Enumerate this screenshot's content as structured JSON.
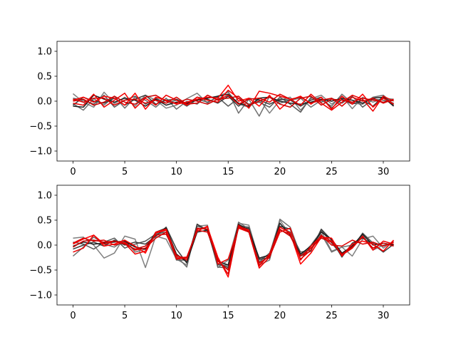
{
  "chart_data": [
    {
      "type": "line",
      "xlim": [
        -1.55,
        32.55
      ],
      "ylim": [
        -1.2,
        1.2
      ],
      "xticks": [
        0,
        5,
        10,
        15,
        20,
        25,
        30
      ],
      "xtick_labels": [
        "0",
        "5",
        "10",
        "15",
        "20",
        "25",
        "30"
      ],
      "yticks": [
        -1.0,
        -0.5,
        0.0,
        0.5,
        1.0
      ],
      "ytick_labels": [
        "−1.0",
        "−0.5",
        "0.0",
        "0.5",
        "1.0"
      ],
      "grid": false,
      "x": [
        0,
        1,
        2,
        3,
        4,
        5,
        6,
        7,
        8,
        9,
        10,
        11,
        12,
        13,
        14,
        15,
        16,
        17,
        18,
        19,
        20,
        21,
        22,
        23,
        24,
        25,
        26,
        27,
        28,
        29,
        30,
        31
      ],
      "series": [
        {
          "color": "#808080",
          "values": [
            0.15,
            -0.02,
            -0.12,
            0.18,
            -0.05,
            0.08,
            -0.1,
            0.12,
            0.02,
            -0.14,
            -0.08,
            0.05,
            0.16,
            -0.04,
            0.1,
            0.18,
            -0.06,
            -0.12,
            0.04,
            -0.24,
            0.02,
            0.08,
            -0.18,
            0.05,
            0.12,
            -0.06,
            0.1,
            -0.15,
            0.08,
            -0.02,
            0.06,
            0.04
          ]
        },
        {
          "color": "#707070",
          "values": [
            -0.05,
            -0.18,
            0.05,
            -0.08,
            0.1,
            -0.14,
            0.08,
            0.02,
            -0.12,
            0.06,
            -0.16,
            0.0,
            -0.06,
            0.12,
            0.02,
            0.2,
            -0.24,
            0.04,
            -0.3,
            0.1,
            -0.04,
            0.02,
            0.06,
            -0.12,
            0.02,
            -0.1,
            0.14,
            -0.04,
            -0.06,
            0.08,
            0.12,
            -0.06
          ]
        },
        {
          "color": "#5a5a5a",
          "values": [
            0.06,
            0.02,
            -0.06,
            0.12,
            -0.12,
            0.02,
            0.1,
            -0.06,
            0.06,
            -0.04,
            0.02,
            -0.1,
            0.04,
            -0.02,
            0.08,
            -0.1,
            0.06,
            -0.06,
            -0.02,
            -0.12,
            0.08,
            -0.06,
            -0.22,
            0.08,
            -0.02,
            0.06,
            -0.04,
            0.1,
            -0.12,
            0.04,
            0.02,
            -0.04
          ]
        },
        {
          "color": "#3c3c3c",
          "values": [
            -0.08,
            0.08,
            0.0,
            -0.04,
            0.06,
            -0.08,
            0.04,
            0.12,
            -0.06,
            0.02,
            0.04,
            -0.06,
            0.08,
            0.04,
            -0.04,
            0.1,
            -0.1,
            0.06,
            0.02,
            -0.06,
            0.04,
            0.02,
            -0.1,
            0.02,
            0.08,
            -0.14,
            0.04,
            -0.06,
            0.02,
            -0.1,
            0.1,
            -0.08
          ]
        },
        {
          "color": "#1e1e1e",
          "values": [
            -0.1,
            -0.12,
            0.12,
            0.04,
            -0.02,
            0.06,
            0.02,
            -0.1,
            0.04,
            -0.08,
            -0.02,
            -0.04,
            0.02,
            0.06,
            0.1,
            0.14,
            -0.04,
            -0.1,
            0.06,
            0.08,
            0.0,
            -0.04,
            -0.06,
            -0.02,
            0.04,
            0.0,
            0.06,
            0.02,
            -0.04,
            0.06,
            0.08,
            -0.1
          ]
        },
        {
          "color": "#ff0000",
          "values": [
            0.02,
            0.08,
            -0.02,
            0.1,
            0.06,
            -0.08,
            0.16,
            -0.16,
            0.08,
            0.02,
            -0.06,
            -0.02,
            0.04,
            0.08,
            0.06,
            0.32,
            0.0,
            0.06,
            -0.1,
            0.12,
            -0.16,
            0.02,
            0.1,
            -0.06,
            0.08,
            -0.16,
            0.1,
            -0.06,
            0.14,
            -0.12,
            0.06,
            -0.06
          ]
        },
        {
          "color": "#ee0000",
          "values": [
            -0.04,
            -0.08,
            0.14,
            -0.12,
            0.02,
            0.16,
            -0.14,
            0.06,
            -0.08,
            0.12,
            0.02,
            -0.08,
            0.08,
            0.02,
            -0.02,
            0.22,
            0.06,
            -0.14,
            0.2,
            0.16,
            0.1,
            0.04,
            -0.08,
            0.14,
            -0.04,
            -0.18,
            -0.02,
            0.12,
            0.04,
            -0.2,
            0.1,
            0.0
          ]
        },
        {
          "color": "#dd0000",
          "values": [
            0.04,
            -0.02,
            0.06,
            0.06,
            -0.08,
            0.02,
            0.04,
            -0.04,
            0.02,
            -0.04,
            0.08,
            -0.06,
            -0.04,
            0.12,
            0.02,
            0.12,
            -0.06,
            0.04,
            0.06,
            -0.02,
            0.14,
            0.04,
            0.08,
            -0.04,
            0.02,
            0.06,
            -0.1,
            0.08,
            0.0,
            0.06,
            -0.04,
            0.04
          ]
        },
        {
          "color": "#cc0000",
          "values": [
            0.0,
            0.04,
            -0.08,
            -0.02,
            0.1,
            -0.02,
            -0.06,
            0.08,
            0.12,
            0.0,
            -0.04,
            0.04,
            0.0,
            -0.06,
            0.04,
            0.06,
            0.1,
            -0.08,
            0.0,
            0.08,
            -0.06,
            -0.12,
            0.06,
            0.1,
            -0.08,
            0.04,
            0.02,
            -0.02,
            0.06,
            0.02,
            -0.02,
            0.02
          ]
        }
      ]
    },
    {
      "type": "line",
      "xlim": [
        -1.55,
        32.55
      ],
      "ylim": [
        -1.2,
        1.2
      ],
      "xticks": [
        0,
        5,
        10,
        15,
        20,
        25,
        30
      ],
      "xtick_labels": [
        "0",
        "5",
        "10",
        "15",
        "20",
        "25",
        "30"
      ],
      "yticks": [
        -1.0,
        -0.5,
        0.0,
        0.5,
        1.0
      ],
      "ytick_labels": [
        "−1.0",
        "−0.5",
        "0.0",
        "0.5",
        "1.0"
      ],
      "grid": false,
      "x": [
        0,
        1,
        2,
        3,
        4,
        5,
        6,
        7,
        8,
        9,
        10,
        11,
        12,
        13,
        14,
        15,
        16,
        17,
        18,
        19,
        20,
        21,
        22,
        23,
        24,
        25,
        26,
        27,
        28,
        29,
        30,
        31
      ],
      "series": [
        {
          "color": "#808080",
          "values": [
            0.14,
            0.16,
            0.0,
            -0.26,
            -0.16,
            0.18,
            0.12,
            -0.45,
            0.18,
            0.12,
            -0.28,
            -0.4,
            0.38,
            0.4,
            -0.45,
            -0.3,
            0.44,
            0.4,
            -0.3,
            -0.18,
            0.5,
            0.2,
            -0.22,
            0.0,
            0.28,
            -0.12,
            -0.04,
            -0.22,
            0.12,
            0.18,
            -0.06,
            0.08
          ]
        },
        {
          "color": "#707070",
          "values": [
            -0.22,
            -0.04,
            0.16,
            0.02,
            -0.04,
            0.1,
            -0.14,
            -0.08,
            0.2,
            0.3,
            -0.22,
            -0.44,
            0.42,
            0.3,
            -0.4,
            -0.4,
            0.46,
            0.32,
            -0.4,
            -0.3,
            0.52,
            0.36,
            -0.2,
            -0.02,
            0.22,
            -0.14,
            -0.04,
            0.0,
            0.2,
            -0.1,
            0.0,
            0.02
          ]
        },
        {
          "color": "#5a5a5a",
          "values": [
            0.06,
            0.02,
            -0.08,
            0.06,
            0.14,
            -0.06,
            0.02,
            0.08,
            0.22,
            0.26,
            -0.3,
            -0.3,
            0.38,
            0.32,
            -0.44,
            -0.46,
            0.38,
            0.36,
            -0.34,
            -0.16,
            0.36,
            0.26,
            -0.14,
            -0.1,
            0.3,
            0.04,
            -0.2,
            -0.06,
            0.24,
            0.04,
            -0.02,
            0.06
          ]
        },
        {
          "color": "#3c3c3c",
          "values": [
            -0.08,
            0.0,
            0.06,
            -0.02,
            0.1,
            0.0,
            0.06,
            0.02,
            0.18,
            0.36,
            -0.08,
            -0.36,
            0.42,
            0.28,
            -0.38,
            -0.44,
            0.34,
            0.34,
            -0.28,
            -0.26,
            0.38,
            0.32,
            -0.22,
            -0.12,
            0.32,
            0.1,
            -0.24,
            0.04,
            0.14,
            0.02,
            -0.14,
            0.02
          ]
        },
        {
          "color": "#1e1e1e",
          "values": [
            -0.02,
            0.06,
            0.02,
            0.04,
            0.06,
            0.08,
            -0.04,
            -0.08,
            0.26,
            0.34,
            -0.18,
            -0.34,
            0.26,
            0.3,
            -0.32,
            -0.4,
            0.42,
            0.3,
            -0.26,
            -0.2,
            0.44,
            0.2,
            -0.18,
            -0.02,
            0.26,
            0.12,
            -0.16,
            -0.02,
            0.22,
            0.0,
            0.04,
            0.0
          ]
        },
        {
          "color": "#ff0000",
          "values": [
            0.02,
            0.12,
            0.2,
            -0.02,
            0.02,
            0.1,
            -0.02,
            -0.16,
            0.26,
            0.32,
            -0.22,
            -0.26,
            0.32,
            0.36,
            -0.24,
            -0.64,
            0.38,
            0.3,
            -0.42,
            -0.18,
            0.36,
            0.24,
            -0.38,
            -0.16,
            0.16,
            0.14,
            -0.22,
            0.02,
            0.08,
            0.02,
            -0.12,
            0.1
          ]
        },
        {
          "color": "#ee0000",
          "values": [
            -0.14,
            -0.06,
            0.2,
            0.02,
            0.08,
            0.04,
            -0.18,
            -0.12,
            0.24,
            0.3,
            -0.28,
            -0.26,
            0.28,
            0.38,
            -0.38,
            -0.28,
            0.34,
            0.26,
            -0.46,
            -0.24,
            0.26,
            0.34,
            -0.3,
            -0.02,
            0.18,
            0.08,
            -0.2,
            -0.06,
            0.18,
            -0.1,
            0.08,
            0.02
          ]
        },
        {
          "color": "#dd0000",
          "values": [
            0.04,
            0.14,
            0.08,
            0.1,
            0.0,
            0.06,
            -0.1,
            -0.06,
            0.14,
            0.26,
            -0.26,
            -0.24,
            0.3,
            0.26,
            -0.28,
            -0.58,
            0.36,
            0.28,
            -0.4,
            -0.2,
            0.3,
            0.22,
            -0.28,
            -0.1,
            0.2,
            0.0,
            -0.02,
            0.1,
            0.02,
            0.06,
            -0.02,
            0.06
          ]
        },
        {
          "color": "#cc0000",
          "values": [
            -0.04,
            0.08,
            0.1,
            0.06,
            0.08,
            0.02,
            -0.08,
            -0.02,
            0.2,
            0.22,
            -0.2,
            -0.3,
            0.34,
            0.32,
            -0.32,
            -0.5,
            0.4,
            0.26,
            -0.36,
            -0.22,
            0.32,
            0.18,
            -0.22,
            -0.06,
            0.14,
            0.06,
            -0.18,
            -0.04,
            0.16,
            -0.06,
            0.04,
            -0.02
          ]
        }
      ]
    }
  ]
}
